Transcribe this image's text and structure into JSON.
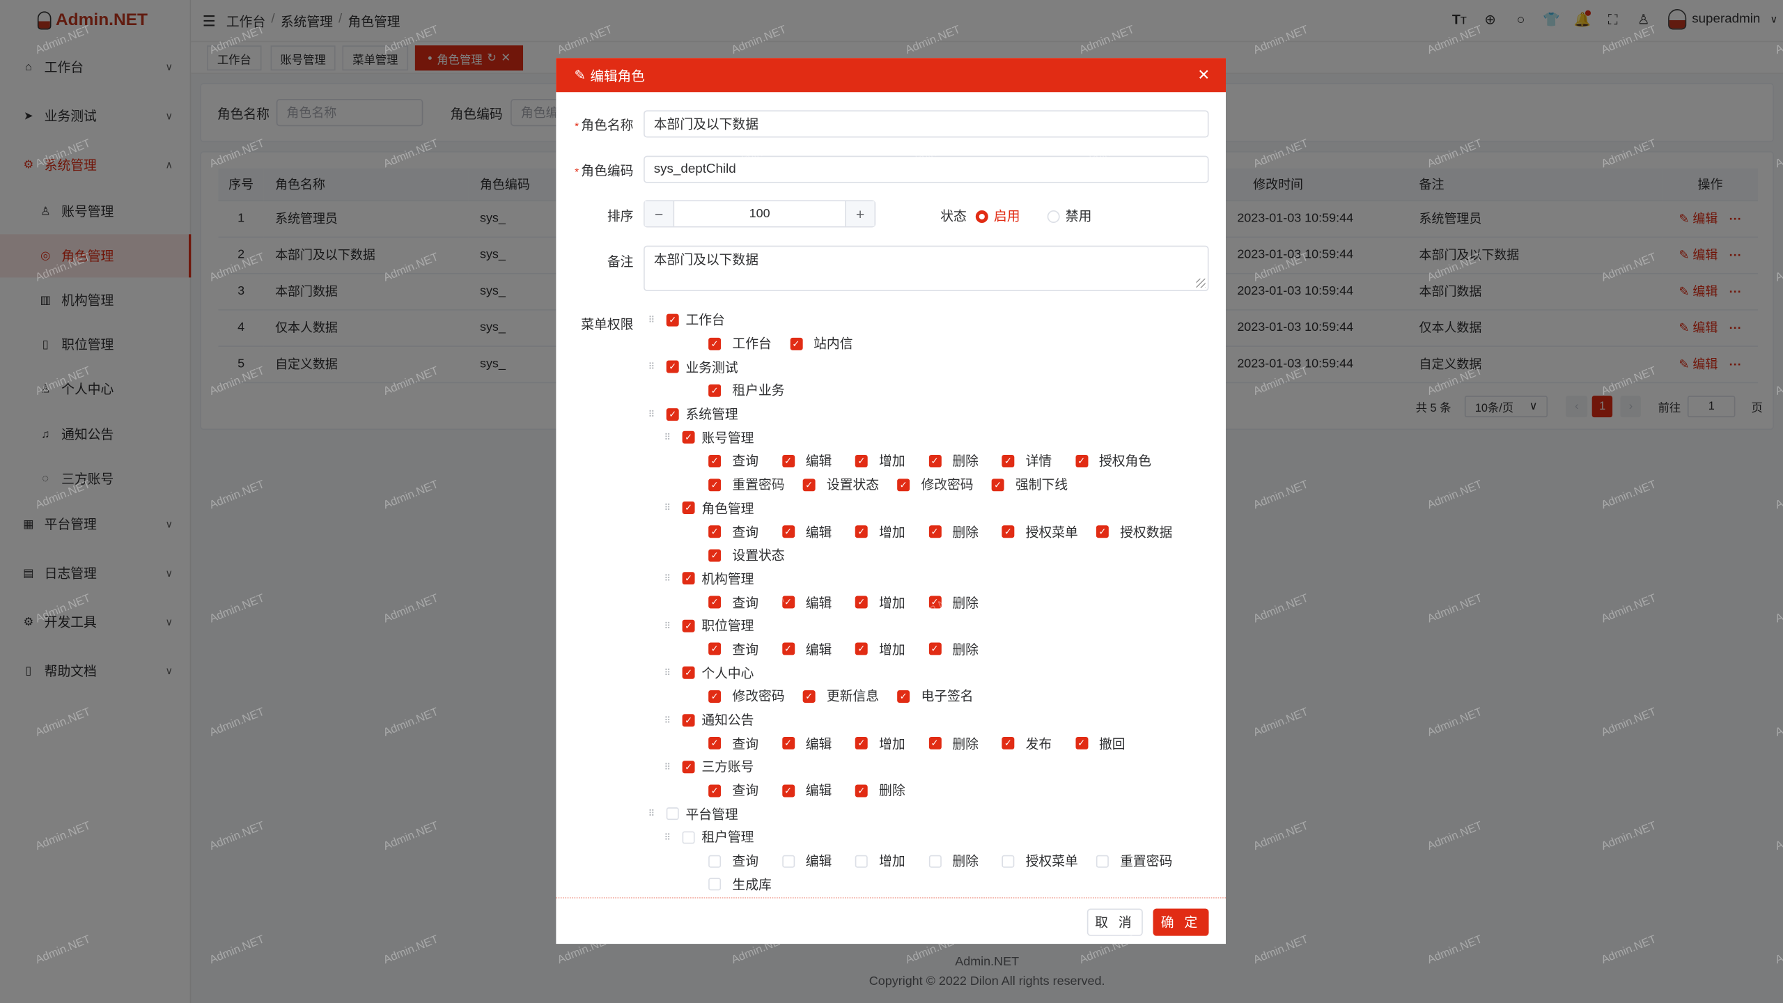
{
  "brand": {
    "name": "Admin.NET",
    "watermark": "Admin.NET"
  },
  "colors": {
    "primary": "#e12c14"
  },
  "sidebar": {
    "items": [
      {
        "label": "工作台",
        "icon": "home-icon",
        "type": "top",
        "chevron": "down"
      },
      {
        "label": "业务测试",
        "icon": "send-icon",
        "type": "top",
        "chevron": "down"
      },
      {
        "label": "系统管理",
        "icon": "gear-icon",
        "type": "top",
        "chevron": "up",
        "open": true
      },
      {
        "label": "账号管理",
        "icon": "user-icon",
        "type": "sub"
      },
      {
        "label": "角色管理",
        "icon": "role-icon",
        "type": "sub",
        "active": true
      },
      {
        "label": "机构管理",
        "icon": "building-icon",
        "type": "sub"
      },
      {
        "label": "职位管理",
        "icon": "position-icon",
        "type": "sub"
      },
      {
        "label": "个人中心",
        "icon": "person-icon",
        "type": "sub"
      },
      {
        "label": "通知公告",
        "icon": "bell-icon",
        "type": "sub"
      },
      {
        "label": "三方账号",
        "icon": "chat-icon",
        "type": "sub"
      },
      {
        "label": "平台管理",
        "icon": "grid-icon",
        "type": "top",
        "chevron": "down"
      },
      {
        "label": "日志管理",
        "icon": "log-icon",
        "type": "top",
        "chevron": "down"
      },
      {
        "label": "开发工具",
        "icon": "tool-icon",
        "type": "top",
        "chevron": "down"
      },
      {
        "label": "帮助文档",
        "icon": "doc-icon",
        "type": "top",
        "chevron": "down"
      }
    ]
  },
  "header": {
    "breadcrumb": [
      "工作台",
      "系统管理",
      "角色管理"
    ],
    "username": "superadmin",
    "icons": [
      "font-size-icon",
      "language-icon",
      "search-icon",
      "skin-icon",
      "bell-icon",
      "fullscreen-icon",
      "user-icon"
    ]
  },
  "tabs": [
    {
      "label": "工作台"
    },
    {
      "label": "账号管理"
    },
    {
      "label": "菜单管理"
    },
    {
      "label": "角色管理",
      "active": true
    }
  ],
  "search": {
    "name_label": "角色名称",
    "name_placeholder": "角色名称",
    "code_label": "角色编码",
    "code_placeholder": "角色编码"
  },
  "table": {
    "headers": {
      "index": "序号",
      "name": "角色名称",
      "code": "角色编码",
      "time": "修改时间",
      "remark": "备注",
      "ops": "操作"
    },
    "edit_label": "编辑",
    "more_label": "···",
    "rows": [
      {
        "index": "1",
        "name": "系统管理员",
        "code": "sys_",
        "time": "2023-01-03 10:59:44",
        "remark": "系统管理员"
      },
      {
        "index": "2",
        "name": "本部门及以下数据",
        "code": "sys_",
        "time": "2023-01-03 10:59:44",
        "remark": "本部门及以下数据"
      },
      {
        "index": "3",
        "name": "本部门数据",
        "code": "sys_",
        "time": "2023-01-03 10:59:44",
        "remark": "本部门数据"
      },
      {
        "index": "4",
        "name": "仅本人数据",
        "code": "sys_",
        "time": "2023-01-03 10:59:44",
        "remark": "仅本人数据"
      },
      {
        "index": "5",
        "name": "自定义数据",
        "code": "sys_",
        "time": "2023-01-03 10:59:44",
        "remark": "自定义数据"
      }
    ]
  },
  "pagination": {
    "total": "共 5 条",
    "page_size": "10条/页",
    "current": "1",
    "goto_label": "前往",
    "goto_value": "1",
    "page_suffix": "页"
  },
  "footer": {
    "title": "Admin.NET",
    "copyright": "Copyright © 2022 Dilon All rights reserved."
  },
  "dialog": {
    "title": "编辑角色",
    "name_label": "角色名称",
    "name_value": "本部门及以下数据",
    "code_label": "角色编码",
    "code_value": "sys_deptChild",
    "order_label": "排序",
    "order_value": "100",
    "status_label": "状态",
    "status_options": [
      {
        "label": "启用",
        "selected": true
      },
      {
        "label": "禁用",
        "selected": false
      }
    ],
    "remark_label": "备注",
    "remark_value": "本部门及以下数据",
    "menu_label": "菜单权限",
    "cancel": "取 消",
    "confirm": "确 定",
    "tree": [
      {
        "label": "工作台",
        "checked": true,
        "leaves": [
          {
            "label": "工作台",
            "checked": true
          },
          {
            "label": "站内信",
            "checked": true
          }
        ]
      },
      {
        "label": "业务测试",
        "checked": true,
        "leaves": [
          {
            "label": "租户业务",
            "checked": true
          }
        ]
      },
      {
        "label": "系统管理",
        "checked": true,
        "children": [
          {
            "label": "账号管理",
            "checked": true,
            "leaves": [
              {
                "label": "查询",
                "checked": true
              },
              {
                "label": "编辑",
                "checked": true
              },
              {
                "label": "增加",
                "checked": true
              },
              {
                "label": "删除",
                "checked": true
              },
              {
                "label": "详情",
                "checked": true
              },
              {
                "label": "授权角色",
                "checked": true
              },
              {
                "label": "重置密码",
                "checked": true
              },
              {
                "label": "设置状态",
                "checked": true
              },
              {
                "label": "修改密码",
                "checked": true
              },
              {
                "label": "强制下线",
                "checked": true
              }
            ]
          },
          {
            "label": "角色管理",
            "checked": true,
            "leaves": [
              {
                "label": "查询",
                "checked": true
              },
              {
                "label": "编辑",
                "checked": true
              },
              {
                "label": "增加",
                "checked": true
              },
              {
                "label": "删除",
                "checked": true
              },
              {
                "label": "授权菜单",
                "checked": true
              },
              {
                "label": "授权数据",
                "checked": true
              },
              {
                "label": "设置状态",
                "checked": true
              }
            ]
          },
          {
            "label": "机构管理",
            "checked": true,
            "leaves": [
              {
                "label": "查询",
                "checked": true
              },
              {
                "label": "编辑",
                "checked": true
              },
              {
                "label": "增加",
                "checked": true
              },
              {
                "label": "删除",
                "checked": true
              }
            ]
          },
          {
            "label": "职位管理",
            "checked": true,
            "leaves": [
              {
                "label": "查询",
                "checked": true
              },
              {
                "label": "编辑",
                "checked": true
              },
              {
                "label": "增加",
                "checked": true
              },
              {
                "label": "删除",
                "checked": true
              }
            ]
          },
          {
            "label": "个人中心",
            "checked": true,
            "leaves": [
              {
                "label": "修改密码",
                "checked": true
              },
              {
                "label": "更新信息",
                "checked": true
              },
              {
                "label": "电子签名",
                "checked": true
              }
            ]
          },
          {
            "label": "通知公告",
            "checked": true,
            "leaves": [
              {
                "label": "查询",
                "checked": true
              },
              {
                "label": "编辑",
                "checked": true
              },
              {
                "label": "增加",
                "checked": true
              },
              {
                "label": "删除",
                "checked": true
              },
              {
                "label": "发布",
                "checked": true
              },
              {
                "label": "撤回",
                "checked": true
              }
            ]
          },
          {
            "label": "三方账号",
            "checked": true,
            "leaves": [
              {
                "label": "查询",
                "checked": true
              },
              {
                "label": "编辑",
                "checked": true
              },
              {
                "label": "删除",
                "checked": true
              }
            ]
          }
        ]
      },
      {
        "label": "平台管理",
        "checked": false,
        "children": [
          {
            "label": "租户管理",
            "checked": false,
            "leaves": [
              {
                "label": "查询",
                "checked": false
              },
              {
                "label": "编辑",
                "checked": false
              },
              {
                "label": "增加",
                "checked": false
              },
              {
                "label": "删除",
                "checked": false
              },
              {
                "label": "授权菜单",
                "checked": false
              },
              {
                "label": "重置密码",
                "checked": false
              },
              {
                "label": "生成库",
                "checked": false
              }
            ]
          }
        ]
      }
    ]
  }
}
